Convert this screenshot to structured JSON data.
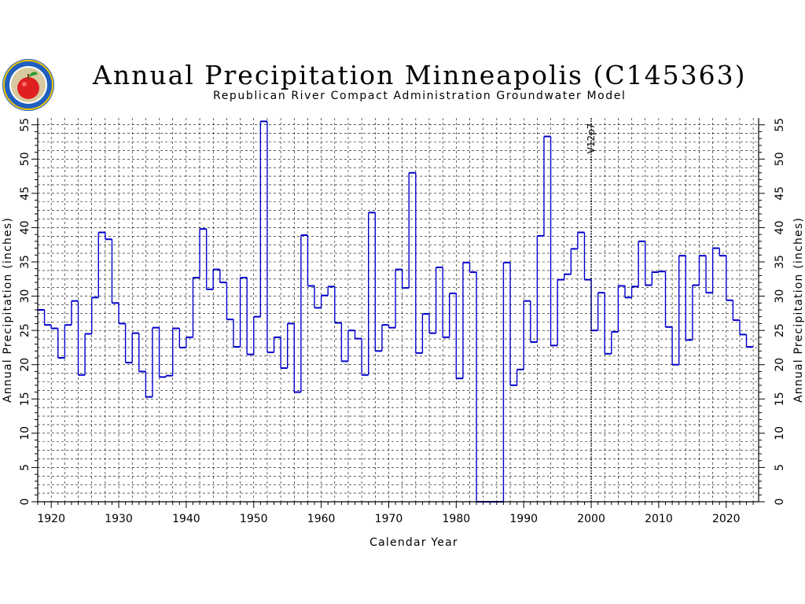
{
  "logo": {
    "description_icon": "rrca-apple-seal-icon",
    "text": "REPUBLICAN RIVER COMPACT ADMINISTRATION"
  },
  "title": "Annual Precipitation Minneapolis (C145363)",
  "subtitle": "Republican River Compact Administration Groundwater Model",
  "colors": {
    "series": "#0000cc",
    "grid": "#000000",
    "logo_blue": "#1f5fbf",
    "logo_ring": "#f2c400",
    "apple": "#e02020"
  },
  "chart_data": {
    "type": "line",
    "step": true,
    "title": "Annual Precipitation Minneapolis (C145363)",
    "subtitle": "Republican River Compact Administration Groundwater Model",
    "xlabel": "Calendar Year",
    "ylabel": "Annual Precipitation (inches)",
    "ylabel_right": "Annual Precipitation (inches)",
    "xlim": [
      1918,
      2024.8
    ],
    "ylim": [
      0,
      56
    ],
    "xticks": [
      1920,
      1930,
      1940,
      1950,
      1960,
      1970,
      1980,
      1990,
      2000,
      2010,
      2020
    ],
    "yticks": [
      0,
      5,
      10,
      15,
      20,
      25,
      30,
      35,
      40,
      45,
      50,
      55
    ],
    "grid": "dashed",
    "annotation": {
      "label": "V12p7",
      "x": 2000
    },
    "series": [
      {
        "x": [
          1918,
          1919,
          1920,
          1921,
          1922,
          1923,
          1924,
          1925,
          1926,
          1927,
          1928,
          1929,
          1930,
          1931,
          1932,
          1933,
          1934,
          1935,
          1936,
          1937,
          1938,
          1939,
          1940,
          1941,
          1942,
          1943,
          1944,
          1945,
          1946,
          1947,
          1948,
          1949,
          1950,
          1951,
          1952,
          1953,
          1954,
          1955,
          1956,
          1957,
          1958,
          1959,
          1960,
          1961,
          1962,
          1963,
          1964,
          1965,
          1966,
          1967,
          1968,
          1969,
          1970,
          1971,
          1972,
          1973,
          1974,
          1975,
          1976,
          1977,
          1978,
          1979,
          1980,
          1981,
          1982,
          1983,
          1984,
          1985,
          1986,
          1987,
          1988,
          1989,
          1990,
          1991,
          1992,
          1993,
          1994,
          1995,
          1996,
          1997,
          1998,
          1999,
          2000,
          2001,
          2002,
          2003,
          2004,
          2005,
          2006,
          2007,
          2008,
          2009,
          2010,
          2011,
          2012,
          2013,
          2014,
          2015,
          2016,
          2017,
          2018,
          2019,
          2020,
          2021,
          2022,
          2023
        ],
        "values": [
          28.0,
          25.8,
          25.3,
          21.0,
          25.8,
          29.3,
          18.5,
          24.5,
          29.8,
          39.3,
          38.3,
          29.0,
          26.0,
          20.3,
          24.6,
          19.0,
          15.3,
          25.4,
          18.2,
          18.4,
          25.3,
          22.5,
          24.0,
          32.7,
          39.8,
          31.0,
          33.9,
          32.0,
          26.6,
          22.6,
          32.7,
          21.5,
          27.0,
          55.5,
          21.8,
          24.0,
          19.5,
          26.0,
          16.0,
          38.9,
          31.5,
          28.3,
          30.1,
          31.4,
          26.1,
          20.5,
          25.0,
          23.8,
          18.5,
          42.2,
          22.0,
          25.8,
          25.4,
          33.9,
          31.2,
          48.0,
          21.7,
          27.4,
          24.6,
          34.2,
          24.0,
          30.4,
          18.0,
          34.9,
          33.5,
          0,
          0,
          0,
          0,
          34.9,
          17.0,
          19.3,
          29.3,
          23.3,
          38.8,
          53.3,
          22.8,
          32.4,
          33.2,
          36.9,
          39.3,
          32.4,
          25.0,
          30.5,
          21.6,
          24.8,
          31.5,
          29.8,
          31.4,
          38.0,
          31.6,
          33.5,
          33.6,
          25.5,
          20.0,
          35.9,
          23.6,
          31.6,
          35.9,
          30.5,
          37.0,
          35.9,
          29.4,
          26.5,
          24.4,
          22.6
        ]
      }
    ]
  }
}
